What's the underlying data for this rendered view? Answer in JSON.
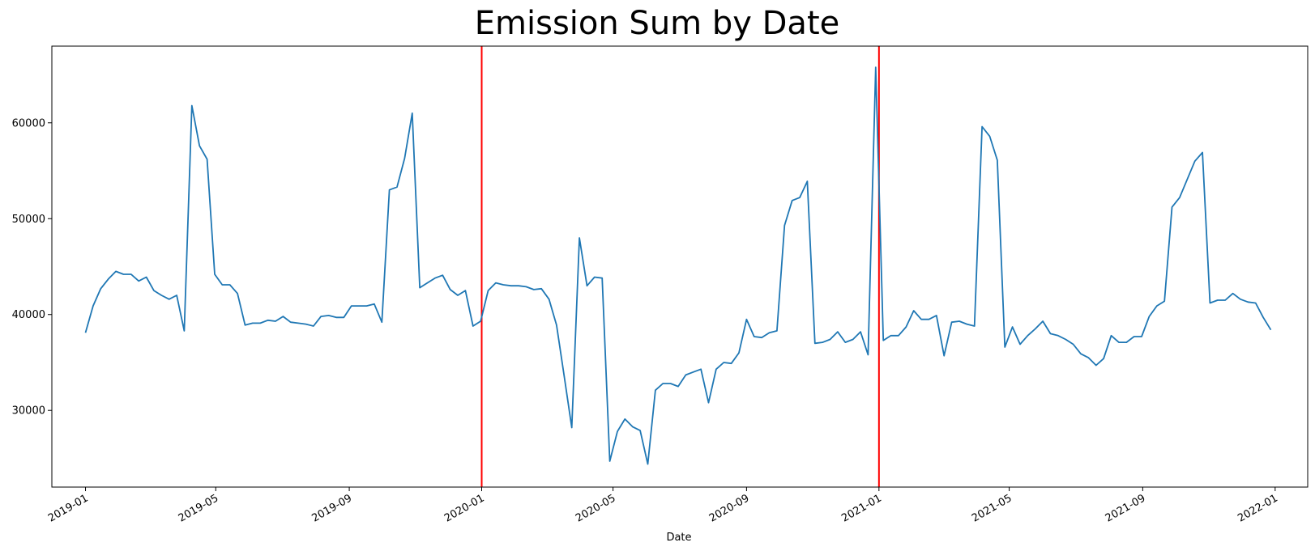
{
  "chart_data": {
    "type": "line",
    "title": "Emission Sum by Date",
    "xlabel": "Date",
    "ylabel": "",
    "xlim": [
      "2018-12-01",
      "2022-01-31"
    ],
    "ylim": [
      22000,
      68000
    ],
    "grid": false,
    "legend": "none",
    "x_ticks": [
      "2019-01",
      "2019-05",
      "2019-09",
      "2020-01",
      "2020-05",
      "2020-09",
      "2021-01",
      "2021-05",
      "2021-09",
      "2022-01"
    ],
    "y_ticks": [
      30000,
      40000,
      50000,
      60000
    ],
    "vlines": [
      {
        "x": "2020-01-01",
        "color": "#ff0000"
      },
      {
        "x": "2021-01-01",
        "color": "#ff0000"
      }
    ],
    "series": [
      {
        "color": "#1f77b4",
        "x": [
          "2019-01-01",
          "2019-01-08",
          "2019-01-15",
          "2019-01-22",
          "2019-01-29",
          "2019-02-05",
          "2019-02-12",
          "2019-02-19",
          "2019-02-26",
          "2019-03-05",
          "2019-03-12",
          "2019-03-19",
          "2019-03-26",
          "2019-04-02",
          "2019-04-09",
          "2019-04-16",
          "2019-04-23",
          "2019-04-30",
          "2019-05-07",
          "2019-05-14",
          "2019-05-21",
          "2019-05-28",
          "2019-06-04",
          "2019-06-11",
          "2019-06-18",
          "2019-06-25",
          "2019-07-02",
          "2019-07-09",
          "2019-07-16",
          "2019-07-23",
          "2019-07-30",
          "2019-08-06",
          "2019-08-13",
          "2019-08-20",
          "2019-08-27",
          "2019-09-03",
          "2019-09-10",
          "2019-09-17",
          "2019-09-24",
          "2019-10-01",
          "2019-10-08",
          "2019-10-15",
          "2019-10-22",
          "2019-10-29",
          "2019-11-05",
          "2019-11-12",
          "2019-11-19",
          "2019-11-26",
          "2019-12-03",
          "2019-12-10",
          "2019-12-17",
          "2019-12-24",
          "2019-12-31",
          "2020-01-07",
          "2020-01-14",
          "2020-01-21",
          "2020-01-28",
          "2020-02-04",
          "2020-02-11",
          "2020-02-18",
          "2020-02-25",
          "2020-03-03",
          "2020-03-10",
          "2020-03-17",
          "2020-03-24",
          "2020-03-31",
          "2020-04-07",
          "2020-04-14",
          "2020-04-21",
          "2020-04-28",
          "2020-05-05",
          "2020-05-12",
          "2020-05-19",
          "2020-05-26",
          "2020-06-02",
          "2020-06-09",
          "2020-06-16",
          "2020-06-23",
          "2020-06-30",
          "2020-07-07",
          "2020-07-14",
          "2020-07-21",
          "2020-07-28",
          "2020-08-04",
          "2020-08-11",
          "2020-08-18",
          "2020-08-25",
          "2020-09-01",
          "2020-09-08",
          "2020-09-15",
          "2020-09-22",
          "2020-09-29",
          "2020-10-06",
          "2020-10-13",
          "2020-10-20",
          "2020-10-27",
          "2020-11-03",
          "2020-11-10",
          "2020-11-17",
          "2020-11-24",
          "2020-12-01",
          "2020-12-08",
          "2020-12-15",
          "2020-12-22",
          "2020-12-29",
          "2021-01-05",
          "2021-01-12",
          "2021-01-19",
          "2021-01-26",
          "2021-02-02",
          "2021-02-09",
          "2021-02-16",
          "2021-02-23",
          "2021-03-02",
          "2021-03-09",
          "2021-03-16",
          "2021-03-23",
          "2021-03-30",
          "2021-04-06",
          "2021-04-13",
          "2021-04-20",
          "2021-04-27",
          "2021-05-04",
          "2021-05-11",
          "2021-05-18",
          "2021-05-25",
          "2021-06-01",
          "2021-06-08",
          "2021-06-15",
          "2021-06-22",
          "2021-06-29",
          "2021-07-06",
          "2021-07-13",
          "2021-07-20",
          "2021-07-27",
          "2021-08-03",
          "2021-08-10",
          "2021-08-17",
          "2021-08-24",
          "2021-08-31",
          "2021-09-07",
          "2021-09-14",
          "2021-09-21",
          "2021-09-28",
          "2021-10-05",
          "2021-10-12",
          "2021-10-19",
          "2021-10-26",
          "2021-11-02",
          "2021-11-09",
          "2021-11-16",
          "2021-11-23",
          "2021-11-30",
          "2021-12-07",
          "2021-12-14",
          "2021-12-21",
          "2021-12-28"
        ],
        "y": [
          38100,
          40900,
          42700,
          43700,
          44500,
          44200,
          44200,
          43500,
          43900,
          42500,
          42000,
          41600,
          42000,
          38300,
          61800,
          57600,
          56200,
          44200,
          43100,
          43100,
          42200,
          38900,
          39100,
          39100,
          39400,
          39300,
          39800,
          39200,
          39100,
          39000,
          38800,
          39800,
          39900,
          39700,
          39700,
          40900,
          40900,
          40900,
          41100,
          39200,
          53000,
          53300,
          56300,
          61000,
          42800,
          43300,
          43800,
          44100,
          42600,
          42000,
          42500,
          38800,
          39300,
          42500,
          43300,
          43100,
          43000,
          43000,
          42900,
          42600,
          42700,
          41600,
          38900,
          33600,
          28200,
          48000,
          43000,
          43900,
          43800,
          24700,
          27800,
          29100,
          28300,
          27900,
          24400,
          32100,
          32800,
          32800,
          32500,
          33700,
          34000,
          34300,
          30800,
          34300,
          35000,
          34900,
          36000,
          39500,
          37700,
          37600,
          38100,
          38300,
          49300,
          51900,
          52200,
          53900,
          37000,
          37100,
          37400,
          38200,
          37100,
          37400,
          38200,
          35800,
          65800,
          37300,
          37800,
          37800,
          38700,
          40400,
          39500,
          39500,
          39900,
          35700,
          39200,
          39300,
          39000,
          38800,
          59600,
          58600,
          56100,
          36600,
          38700,
          36900,
          37800,
          38500,
          39300,
          38000,
          37800,
          37400,
          36900,
          35900,
          35500,
          34700,
          35400,
          37800,
          37100,
          37100,
          37700,
          37700,
          39800,
          40900,
          41400,
          51200,
          52200,
          54100,
          56000,
          56900,
          41200,
          41500,
          41500,
          42200,
          41600,
          41300,
          41200,
          39700,
          38400
        ]
      }
    ]
  }
}
